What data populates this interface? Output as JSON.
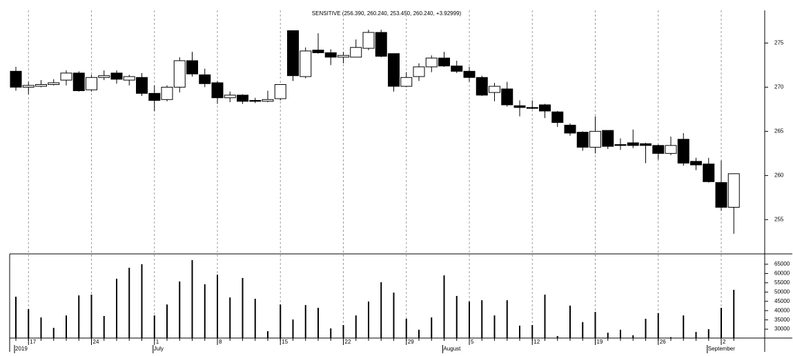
{
  "chart_data": [
    {
      "type": "candlestick",
      "title": "SENSITIVE (256.390, 260.240, 253.450, 260.240, +3.92999)",
      "categories": [
        null,
        "17",
        null,
        null,
        null,
        null,
        "24",
        null,
        null,
        null,
        null,
        "1",
        null,
        null,
        null,
        null,
        "8",
        null,
        null,
        null,
        null,
        "15",
        null,
        null,
        null,
        null,
        "22",
        null,
        null,
        null,
        null,
        "29",
        null,
        null,
        null,
        null,
        "5",
        null,
        null,
        null,
        null,
        "12",
        null,
        null,
        null,
        null,
        "19",
        null,
        null,
        null,
        null,
        "26",
        null,
        null,
        null,
        null,
        "2",
        null
      ],
      "month_categories": [
        "2019",
        null,
        null,
        null,
        null,
        null,
        null,
        null,
        null,
        null,
        null,
        "July",
        null,
        null,
        null,
        null,
        null,
        null,
        null,
        null,
        null,
        null,
        null,
        null,
        null,
        null,
        null,
        null,
        null,
        null,
        null,
        null,
        null,
        null,
        "August",
        null,
        null,
        null,
        null,
        null,
        null,
        null,
        null,
        null,
        null,
        null,
        null,
        null,
        null,
        null,
        null,
        null,
        null,
        null,
        null,
        "September",
        null,
        null
      ],
      "open": [
        271.8,
        270.0,
        270.1,
        270.3,
        270.8,
        271.6,
        269.7,
        271.1,
        271.6,
        270.8,
        271.1,
        269.3,
        268.6,
        270.0,
        273.0,
        271.4,
        270.5,
        268.8,
        269.1,
        268.5,
        268.4,
        268.7,
        276.4,
        271.2,
        274.2,
        273.9,
        273.4,
        273.4,
        274.4,
        276.2,
        273.8,
        270.1,
        271.2,
        272.3,
        273.3,
        272.4,
        271.8,
        271.1,
        269.4,
        269.8,
        267.9,
        267.7,
        268.0,
        267.2,
        265.7,
        264.9,
        263.2,
        265.1,
        263.5,
        263.7,
        263.6,
        263.4,
        262.5,
        264.1,
        261.6,
        261.3,
        259.2,
        256.4
      ],
      "high": [
        272.3,
        270.6,
        270.8,
        270.9,
        271.9,
        271.8,
        271.4,
        271.9,
        271.9,
        271.4,
        271.6,
        270.2,
        270.2,
        273.4,
        274.0,
        272.1,
        270.7,
        269.5,
        269.2,
        268.8,
        269.6,
        270.3,
        276.4,
        274.5,
        276.1,
        274.3,
        274.0,
        275.4,
        276.5,
        276.5,
        273.8,
        271.7,
        272.7,
        273.6,
        274.0,
        273.0,
        272.3,
        271.3,
        270.5,
        270.6,
        268.5,
        268.5,
        268.1,
        267.3,
        265.9,
        265.0,
        266.7,
        265.1,
        264.2,
        265.2,
        263.7,
        263.5,
        264.4,
        264.8,
        262.0,
        262.0,
        261.7,
        260.2
      ],
      "low": [
        269.6,
        269.2,
        270.0,
        270.2,
        270.2,
        269.5,
        269.5,
        270.8,
        270.4,
        270.2,
        269.0,
        267.3,
        268.4,
        269.4,
        271.2,
        270.0,
        268.1,
        268.3,
        268.1,
        268.2,
        268.3,
        268.5,
        270.7,
        271.0,
        273.8,
        272.5,
        272.7,
        273.4,
        274.2,
        273.4,
        269.5,
        270.0,
        270.7,
        271.7,
        272.3,
        271.6,
        270.6,
        269.0,
        268.4,
        267.8,
        266.7,
        267.5,
        266.5,
        265.5,
        264.5,
        262.8,
        262.5,
        263.0,
        262.9,
        263.1,
        261.4,
        261.8,
        262.3,
        261.1,
        260.6,
        259.2,
        256.0,
        253.4
      ],
      "close": [
        270.0,
        270.2,
        270.3,
        270.5,
        271.6,
        269.6,
        271.1,
        271.3,
        270.9,
        271.2,
        269.3,
        268.5,
        270.0,
        273.0,
        271.5,
        270.4,
        268.8,
        269.1,
        268.4,
        268.4,
        268.6,
        270.3,
        271.3,
        274.1,
        273.9,
        273.4,
        273.6,
        274.5,
        276.2,
        273.5,
        270.1,
        271.1,
        272.3,
        273.3,
        272.4,
        271.8,
        271.1,
        269.1,
        270.1,
        268.0,
        267.7,
        267.6,
        267.3,
        266.0,
        264.8,
        263.2,
        265.0,
        263.3,
        263.4,
        263.4,
        263.4,
        262.5,
        263.4,
        261.4,
        261.2,
        259.3,
        256.4,
        260.2
      ],
      "up_color": "#ffffff",
      "down_color": "#000000",
      "ylim": [
        251.2,
        278.7
      ],
      "yticks": [
        255,
        260,
        265,
        270,
        275
      ],
      "grid": true
    },
    {
      "type": "bar",
      "values": [
        47500,
        40800,
        36300,
        30700,
        37400,
        48200,
        48600,
        37100,
        57200,
        63100,
        65000,
        37400,
        43300,
        55700,
        67200,
        54200,
        59400,
        47100,
        57600,
        46400,
        28900,
        43300,
        35200,
        43000,
        41500,
        30400,
        32200,
        37400,
        44900,
        55300,
        49700,
        35600,
        29700,
        36300,
        59000,
        47900,
        44900,
        45600,
        37400,
        45600,
        31900,
        32200,
        48600,
        26300,
        42700,
        33800,
        39300,
        28100,
        29700,
        26700,
        35600,
        38600,
        25700,
        37400,
        28500,
        30000,
        41500,
        51200
      ],
      "color": "#000000",
      "ylim": [
        25200,
        70200
      ],
      "yticks": [
        30000,
        35000,
        40000,
        45000,
        50000,
        55000,
        60000,
        65000
      ],
      "grid": true
    }
  ]
}
